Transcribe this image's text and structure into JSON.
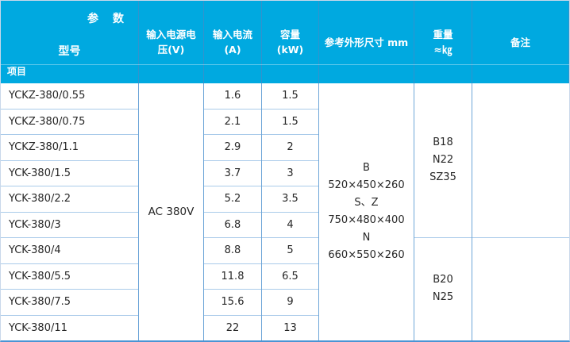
{
  "header": {
    "corner_top": "参　数",
    "corner_middle": "型号",
    "corner_bottom": "项目",
    "columns": [
      {
        "line1": "输入电源电",
        "line2": "压(V)"
      },
      {
        "line1": "输入电流",
        "line2": "(A)"
      },
      {
        "line1": "容量",
        "line2": "(kW)"
      },
      {
        "line1": "参考外形尺寸 mm",
        "line2": ""
      },
      {
        "line1": "重量",
        "line2": "≈㎏"
      },
      {
        "line1": "备注",
        "line2": ""
      }
    ]
  },
  "voltage": "AC 380V",
  "rows": [
    {
      "model": "YCKZ-380/0.55",
      "current": "1.6",
      "capacity": "1.5"
    },
    {
      "model": "YCKZ-380/0.75",
      "current": "2.1",
      "capacity": "1.5"
    },
    {
      "model": "YCKZ-380/1.1",
      "current": "2.9",
      "capacity": "2"
    },
    {
      "model": "YCK-380/1.5",
      "current": "3.7",
      "capacity": "3"
    },
    {
      "model": "YCK-380/2.2",
      "current": "5.2",
      "capacity": "3.5"
    },
    {
      "model": "YCK-380/3",
      "current": "6.8",
      "capacity": "4"
    },
    {
      "model": "YCK-380/4",
      "current": "8.8",
      "capacity": "5"
    },
    {
      "model": "YCK-380/5.5",
      "current": "11.8",
      "capacity": "6.5"
    },
    {
      "model": "YCK-380/7.5",
      "current": "15.6",
      "capacity": "9"
    },
    {
      "model": "YCK-380/11",
      "current": "22",
      "capacity": "13"
    }
  ],
  "dimensions": {
    "lines": [
      "B",
      "520×450×260",
      "S、Z",
      "750×480×400",
      "N",
      "660×550×260"
    ]
  },
  "weight_groups": [
    {
      "lines": [
        "B18",
        "N22",
        "SZ35"
      ]
    },
    {
      "lines": [
        "B20",
        "N25"
      ]
    }
  ],
  "remarks": [
    "",
    ""
  ],
  "colors": {
    "header_bg": "#00a9e0",
    "header_text": "#ffffff",
    "grid_strong": "#6ea6d8",
    "grid_light": "#aacbea",
    "body_text": "#262626",
    "outer_border": "#c9d8ea",
    "bottom_border": "#4a94d4"
  }
}
